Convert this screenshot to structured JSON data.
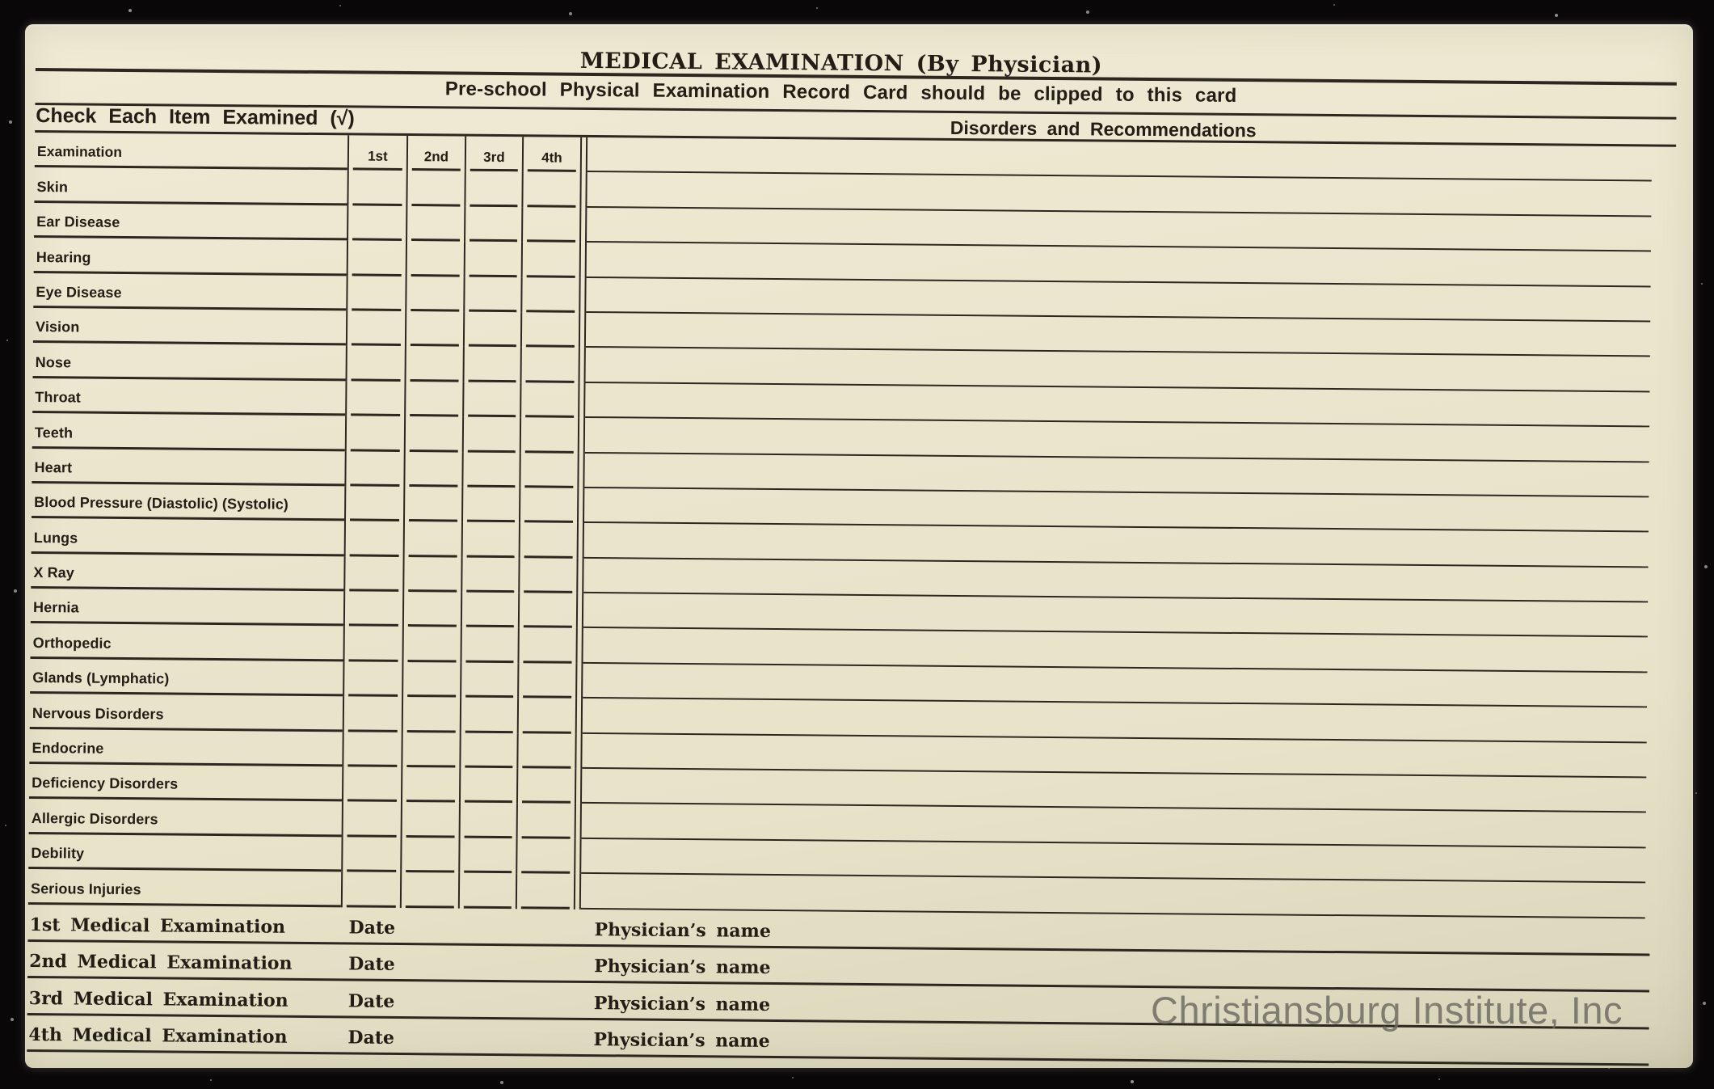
{
  "header": {
    "title": "MEDICAL EXAMINATION (By Physician)",
    "subtitle": "Pre-school Physical Examination Record Card should be clipped to this card",
    "check_section_title": "Check Each Item Examined (√)",
    "disorders_section_title": "Disorders and Recommendations"
  },
  "table": {
    "label_column_header": "Examination",
    "visit_columns": [
      "1st",
      "2nd",
      "3rd",
      "4th"
    ],
    "rows": [
      "Skin",
      "Ear Disease",
      "Hearing",
      "Eye Disease",
      "Vision",
      "Nose",
      "Throat",
      "Teeth",
      "Heart",
      "Blood Pressure  (Diastolic) (Systolic)",
      "Lungs",
      "X Ray",
      "Hernia",
      "Orthopedic",
      "Glands (Lymphatic)",
      "Nervous Disorders",
      "Endocrine",
      "Deficiency Disorders",
      "Allergic Disorders",
      "Debility",
      "Serious Injuries"
    ]
  },
  "footer": {
    "rows": [
      {
        "label": "1st Medical Examination",
        "date_label": "Date",
        "physician_label": "Physician’s name"
      },
      {
        "label": "2nd Medical Examination",
        "date_label": "Date",
        "physician_label": "Physician’s name"
      },
      {
        "label": "3rd Medical Examination",
        "date_label": "Date",
        "physician_label": "Physician’s name"
      },
      {
        "label": "4th Medical Examination",
        "date_label": "Date",
        "physician_label": "Physician’s name"
      }
    ]
  },
  "watermark": "Christiansburg Institute, Inc",
  "colors": {
    "card_background": "#eae6ce",
    "ink": "#221e15",
    "scanner_background": "#0a0709",
    "watermark_gray": "#6b6960"
  }
}
